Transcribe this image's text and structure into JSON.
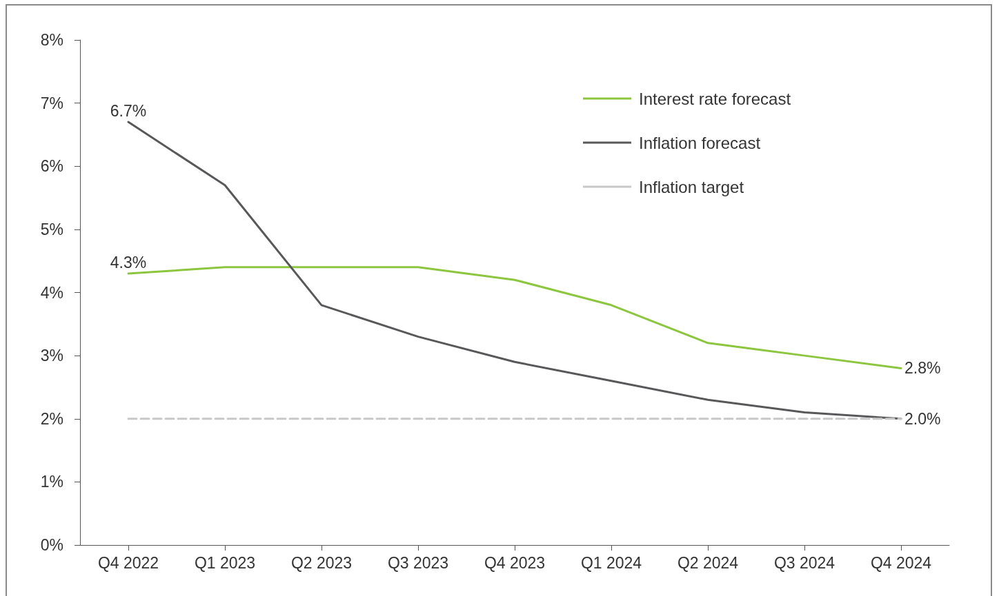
{
  "chart_data": {
    "type": "line",
    "categories": [
      "Q4 2022",
      "Q1 2023",
      "Q2 2023",
      "Q3 2023",
      "Q4 2023",
      "Q1 2024",
      "Q2 2024",
      "Q3 2024",
      "Q4 2024"
    ],
    "series": [
      {
        "name": "Interest rate forecast",
        "color": "#8cc63f",
        "line_style": "solid",
        "values": [
          4.3,
          4.4,
          4.4,
          4.4,
          4.2,
          3.8,
          3.2,
          3.0,
          2.8
        ],
        "value_labels": [
          "4.3%",
          null,
          null,
          null,
          null,
          null,
          null,
          null,
          "2.8%"
        ]
      },
      {
        "name": "Inflation forecast",
        "color": "#58585a",
        "line_style": "solid",
        "values": [
          6.7,
          5.7,
          3.8,
          3.3,
          2.9,
          2.6,
          2.3,
          2.1,
          2.0
        ],
        "value_labels": [
          "6.7%",
          null,
          null,
          null,
          null,
          null,
          null,
          null,
          "2.0%"
        ]
      },
      {
        "name": "Inflation target",
        "color": "#c8c8c8",
        "line_style": "dashed",
        "values": [
          2,
          2,
          2,
          2,
          2,
          2,
          2,
          2,
          2
        ]
      }
    ],
    "ylim": [
      0,
      8
    ],
    "yticks": [
      {
        "value": 0,
        "label": "0%"
      },
      {
        "value": 1,
        "label": "1%"
      },
      {
        "value": 2,
        "label": "2%"
      },
      {
        "value": 3,
        "label": "3%"
      },
      {
        "value": 4,
        "label": "4%"
      },
      {
        "value": 5,
        "label": "5%"
      },
      {
        "value": 6,
        "label": "6%"
      },
      {
        "value": 7,
        "label": "7%"
      },
      {
        "value": 8,
        "label": "8%"
      }
    ],
    "grid": false,
    "legend": "top right"
  }
}
